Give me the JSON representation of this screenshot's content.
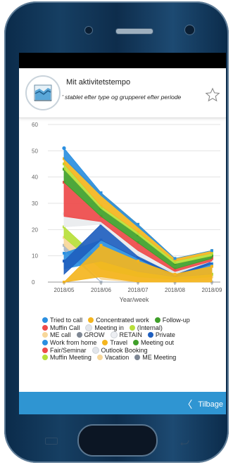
{
  "header": {
    "title": "Mit aktivitetstempo",
    "subtitle": "' stablet efter type og grupperet efter periode"
  },
  "footer": {
    "back_label": "Tilbage"
  },
  "chart_data": {
    "type": "area",
    "x": [
      "2018/05",
      "2018/06",
      "2018/07",
      "2018/08",
      "2018/09"
    ],
    "xlabel": "Year/week",
    "ylabel": "",
    "ylim": [
      0,
      60
    ],
    "yticks": [
      "0",
      "10",
      "20",
      "30",
      "40",
      "50",
      "60"
    ],
    "grid": true,
    "series": [
      {
        "name": "Tried to call",
        "color": "#2b8fe0",
        "values": [
          0,
          0,
          0,
          0,
          0
        ]
      },
      {
        "name": "Concentrated work",
        "color": "#f4b51e",
        "values": [
          0,
          0,
          0,
          0,
          0
        ]
      },
      {
        "name": "Follow-up",
        "color": "#3f9f2a",
        "values": [
          0,
          0,
          0,
          0,
          0
        ]
      },
      {
        "name": "Muffin Call",
        "color": "#ee4a4a",
        "values": [
          0,
          0,
          0,
          0,
          0
        ]
      },
      {
        "name": "Meeting in",
        "color": "#e2e5ea",
        "values": [
          0,
          0,
          0,
          0,
          0
        ]
      },
      {
        "name": "(Internal)",
        "color": "#b7df3a",
        "values": [
          0,
          0,
          0,
          0,
          0
        ]
      },
      {
        "name": "ME call",
        "color": "#f7d79a",
        "values": [
          0,
          0,
          0,
          0,
          0
        ]
      },
      {
        "name": "GROW",
        "color": "#7e8794",
        "values": [
          0,
          0,
          0,
          0,
          0
        ]
      },
      {
        "name": "RETAIN",
        "color": "#eceef2",
        "values": [
          0,
          0,
          0,
          0,
          0
        ]
      },
      {
        "name": "Private",
        "color": "#1f5fbf",
        "values": [
          0,
          0,
          0,
          0,
          0
        ]
      },
      {
        "name": "Work from home",
        "color": "#2b8fe0",
        "values": [
          0,
          0,
          0,
          0,
          0
        ]
      },
      {
        "name": "Travel",
        "color": "#f4b51e",
        "values": [
          0,
          0,
          0,
          0,
          0
        ]
      },
      {
        "name": "Meeting out",
        "color": "#3f9f2a",
        "values": [
          0,
          0,
          0,
          0,
          0
        ]
      },
      {
        "name": "Fair/Seminar",
        "color": "#ee4a4a",
        "values": [
          0,
          0,
          0,
          0,
          0
        ]
      },
      {
        "name": "Outlook Booking",
        "color": "#e2e5ea",
        "values": [
          0,
          0,
          0,
          0,
          0
        ]
      },
      {
        "name": "Muffin Meeting",
        "color": "#b7df3a",
        "values": [
          0,
          0,
          0,
          0,
          0
        ]
      },
      {
        "name": "Vacation",
        "color": "#f7d79a",
        "values": [
          0,
          0,
          0,
          0,
          0
        ]
      },
      {
        "name": "ME Meeting",
        "color": "#7e8794",
        "values": [
          0,
          0,
          0,
          0,
          0
        ]
      }
    ],
    "bands": [
      {
        "color": "#a9b6c4",
        "lower": [
          12,
          0,
          0,
          0,
          0
        ],
        "upper": [
          14,
          0,
          0,
          0,
          0
        ]
      },
      {
        "color": "#f7d79a",
        "lower": [
          14,
          1,
          0,
          0,
          1
        ],
        "upper": [
          17,
          5,
          2,
          1,
          2
        ]
      },
      {
        "color": "#b7df3a",
        "lower": [
          17,
          5,
          2,
          1,
          2
        ],
        "upper": [
          21,
          8,
          4,
          2,
          3
        ]
      },
      {
        "color": "#2b8fe0",
        "lower": [
          5,
          8,
          4,
          2,
          3
        ],
        "upper": [
          11,
          16,
          9,
          4,
          7
        ]
      },
      {
        "color": "#1f5fbf",
        "lower": [
          3,
          16,
          9,
          2,
          7
        ],
        "upper": [
          8,
          22,
          10,
          3,
          8
        ]
      },
      {
        "color": "#e9ebee",
        "lower": [
          21,
          22,
          10,
          3,
          8
        ],
        "upper": [
          26,
          23,
          12,
          4,
          8
        ]
      },
      {
        "color": "#ee4a4a",
        "lower": [
          25,
          23,
          12,
          4,
          8
        ],
        "upper": [
          38,
          25,
          15,
          5,
          9
        ]
      },
      {
        "color": "#f4b51e",
        "lower": [
          0,
          2,
          0,
          0,
          0
        ],
        "upper": [
          0,
          14,
          8,
          3,
          6
        ]
      },
      {
        "color": "#3f9f2a",
        "lower": [
          38,
          25,
          15,
          5,
          9
        ],
        "upper": [
          43,
          28,
          18,
          7,
          10
        ]
      },
      {
        "color": "#b7df3a",
        "lower": [
          43,
          28,
          18,
          7,
          10
        ],
        "upper": [
          45,
          29,
          19,
          8,
          11
        ]
      },
      {
        "color": "#f4b51e",
        "lower": [
          45,
          29,
          19,
          8,
          11
        ],
        "upper": [
          47,
          34,
          22,
          9,
          12
        ]
      },
      {
        "color": "#2b8fe0",
        "lower": [
          47,
          33,
          21,
          9,
          12
        ],
        "upper": [
          51,
          34,
          22,
          9,
          12
        ]
      }
    ],
    "legend": [
      [
        {
          "name": "Tried to call",
          "color": "#2b8fe0"
        },
        {
          "name": "Concentrated work",
          "color": "#f4b51e"
        },
        {
          "name": "Follow-up",
          "color": "#3f9f2a"
        }
      ],
      [
        {
          "name": "Muffin Call",
          "color": "#ee4a4a"
        },
        {
          "name": "Meeting in",
          "color": "#e2e5ea"
        },
        {
          "name": "(Internal)",
          "color": "#b7df3a"
        }
      ],
      [
        {
          "name": "ME call",
          "color": "#f7d79a"
        },
        {
          "name": "GROW",
          "color": "#7e8794"
        },
        {
          "name": "RETAIN",
          "color": "#eceef2"
        },
        {
          "name": "Private",
          "color": "#1f5fbf"
        }
      ],
      [
        {
          "name": "Work from home",
          "color": "#2b8fe0"
        },
        {
          "name": "Travel",
          "color": "#f4b51e"
        },
        {
          "name": "Meeting out",
          "color": "#3f9f2a"
        }
      ],
      [
        {
          "name": "Fair/Seminar",
          "color": "#ee4a4a"
        },
        {
          "name": "Outlook Booking",
          "color": "#e2e5ea"
        }
      ],
      [
        {
          "name": "Muffin Meeting",
          "color": "#b7df3a"
        },
        {
          "name": "Vacation",
          "color": "#f7d79a"
        },
        {
          "name": "ME Meeting",
          "color": "#7e8794"
        }
      ]
    ],
    "legend_position": "bottom"
  }
}
